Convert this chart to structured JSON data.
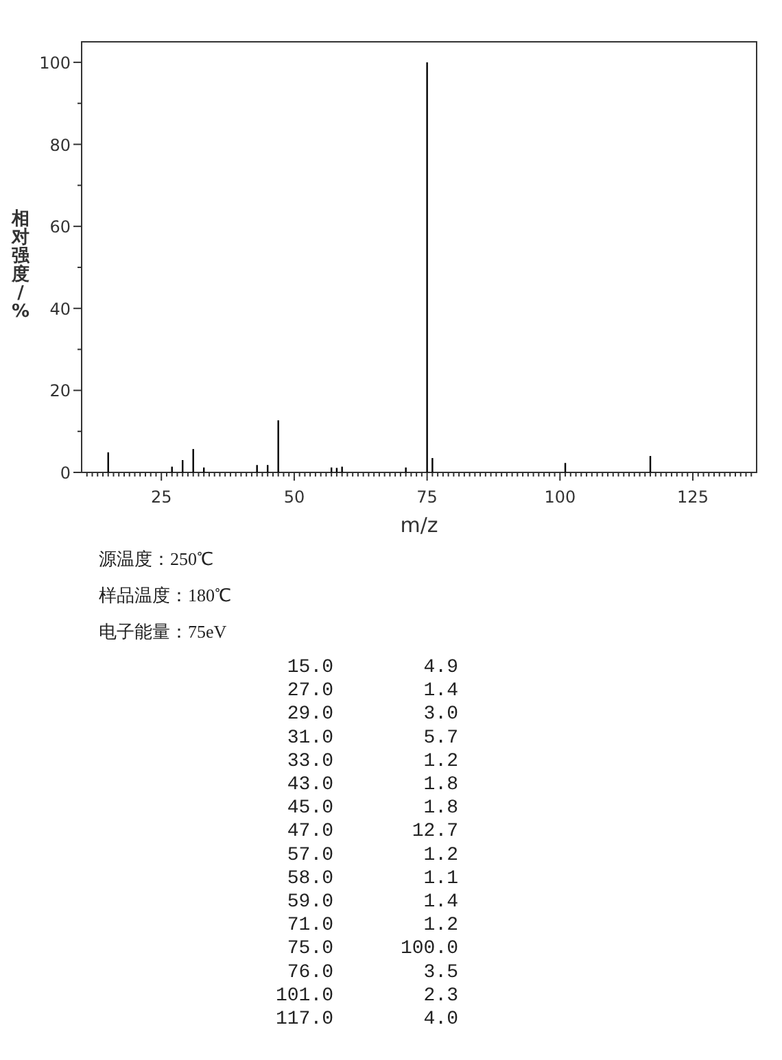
{
  "chart_data": [
    {
      "type": "bar",
      "xlabel": "m/z",
      "ylabel": "相对强度/%",
      "x": [
        15,
        27,
        29,
        31,
        33,
        43,
        45,
        47,
        57,
        58,
        59,
        71,
        75,
        76,
        101,
        117
      ],
      "values": [
        4.9,
        1.4,
        3.0,
        5.7,
        1.2,
        1.8,
        1.8,
        12.7,
        1.2,
        1.1,
        1.4,
        1.2,
        100.0,
        3.5,
        2.3,
        4.0
      ],
      "color": "#000000",
      "xlim": [
        10,
        137
      ],
      "ylim": [
        0,
        105
      ],
      "xticks": [
        {
          "value": 11,
          "label": null
        },
        {
          "value": 12,
          "label": null
        },
        {
          "value": 13,
          "label": null
        },
        {
          "value": 14,
          "label": null
        },
        {
          "value": 15,
          "label": null
        },
        {
          "value": 16,
          "label": null
        },
        {
          "value": 17,
          "label": null
        },
        {
          "value": 18,
          "label": null
        },
        {
          "value": 19,
          "label": null
        },
        {
          "value": 20,
          "label": null
        },
        {
          "value": 21,
          "label": null
        },
        {
          "value": 22,
          "label": null
        },
        {
          "value": 23,
          "label": null
        },
        {
          "value": 24,
          "label": null
        },
        25,
        {
          "value": 26,
          "label": null
        },
        {
          "value": 27,
          "label": null
        },
        {
          "value": 28,
          "label": null
        },
        {
          "value": 29,
          "label": null
        },
        {
          "value": 30,
          "label": null
        },
        {
          "value": 31,
          "label": null
        },
        {
          "value": 32,
          "label": null
        },
        {
          "value": 33,
          "label": null
        },
        {
          "value": 34,
          "label": null
        },
        {
          "value": 35,
          "label": null
        },
        {
          "value": 36,
          "label": null
        },
        {
          "value": 37,
          "label": null
        },
        {
          "value": 38,
          "label": null
        },
        {
          "value": 39,
          "label": null
        },
        {
          "value": 40,
          "label": null
        },
        {
          "value": 41,
          "label": null
        },
        {
          "value": 42,
          "label": null
        },
        {
          "value": 43,
          "label": null
        },
        {
          "value": 44,
          "label": null
        },
        {
          "value": 45,
          "label": null
        },
        {
          "value": 46,
          "label": null
        },
        {
          "value": 47,
          "label": null
        },
        {
          "value": 48,
          "label": null
        },
        {
          "value": 49,
          "label": null
        },
        50,
        {
          "value": 51,
          "label": null
        },
        {
          "value": 52,
          "label": null
        },
        {
          "value": 53,
          "label": null
        },
        {
          "value": 54,
          "label": null
        },
        {
          "value": 55,
          "label": null
        },
        {
          "value": 56,
          "label": null
        },
        {
          "value": 57,
          "label": null
        },
        {
          "value": 58,
          "label": null
        },
        {
          "value": 59,
          "label": null
        },
        {
          "value": 60,
          "label": null
        },
        {
          "value": 61,
          "label": null
        },
        {
          "value": 62,
          "label": null
        },
        {
          "value": 63,
          "label": null
        },
        {
          "value": 64,
          "label": null
        },
        {
          "value": 65,
          "label": null
        },
        {
          "value": 66,
          "label": null
        },
        {
          "value": 67,
          "label": null
        },
        {
          "value": 68,
          "label": null
        },
        {
          "value": 69,
          "label": null
        },
        {
          "value": 70,
          "label": null
        },
        {
          "value": 71,
          "label": null
        },
        {
          "value": 72,
          "label": null
        },
        {
          "value": 73,
          "label": null
        },
        {
          "value": 74,
          "label": null
        },
        75,
        {
          "value": 76,
          "label": null
        },
        {
          "value": 77,
          "label": null
        },
        {
          "value": 78,
          "label": null
        },
        {
          "value": 79,
          "label": null
        },
        {
          "value": 80,
          "label": null
        },
        {
          "value": 81,
          "label": null
        },
        {
          "value": 82,
          "label": null
        },
        {
          "value": 83,
          "label": null
        },
        {
          "value": 84,
          "label": null
        },
        {
          "value": 85,
          "label": null
        },
        {
          "value": 86,
          "label": null
        },
        {
          "value": 87,
          "label": null
        },
        {
          "value": 88,
          "label": null
        },
        {
          "value": 89,
          "label": null
        },
        {
          "value": 90,
          "label": null
        },
        {
          "value": 91,
          "label": null
        },
        {
          "value": 92,
          "label": null
        },
        {
          "value": 93,
          "label": null
        },
        {
          "value": 94,
          "label": null
        },
        {
          "value": 95,
          "label": null
        },
        {
          "value": 96,
          "label": null
        },
        {
          "value": 97,
          "label": null
        },
        {
          "value": 98,
          "label": null
        },
        {
          "value": 99,
          "label": null
        },
        100,
        {
          "value": 101,
          "label": null
        },
        {
          "value": 102,
          "label": null
        },
        {
          "value": 103,
          "label": null
        },
        {
          "value": 104,
          "label": null
        },
        {
          "value": 105,
          "label": null
        },
        {
          "value": 106,
          "label": null
        },
        {
          "value": 107,
          "label": null
        },
        {
          "value": 108,
          "label": null
        },
        {
          "value": 109,
          "label": null
        },
        {
          "value": 110,
          "label": null
        },
        {
          "value": 111,
          "label": null
        },
        {
          "value": 112,
          "label": null
        },
        {
          "value": 113,
          "label": null
        },
        {
          "value": 114,
          "label": null
        },
        {
          "value": 115,
          "label": null
        },
        {
          "value": 116,
          "label": null
        },
        {
          "value": 117,
          "label": null
        },
        {
          "value": 118,
          "label": null
        },
        {
          "value": 119,
          "label": null
        },
        {
          "value": 120,
          "label": null
        },
        {
          "value": 121,
          "label": null
        },
        {
          "value": 122,
          "label": null
        },
        {
          "value": 123,
          "label": null
        },
        {
          "value": 124,
          "label": null
        },
        125,
        {
          "value": 126,
          "label": null
        },
        {
          "value": 127,
          "label": null
        },
        {
          "value": 128,
          "label": null
        },
        {
          "value": 129,
          "label": null
        },
        {
          "value": 130,
          "label": null
        },
        {
          "value": 131,
          "label": null
        },
        {
          "value": 132,
          "label": null
        },
        {
          "value": 133,
          "label": null
        },
        {
          "value": 134,
          "label": null
        },
        {
          "value": 135,
          "label": null
        },
        {
          "value": 136,
          "label": null
        }
      ],
      "yticks": [
        0,
        {
          "value": 10,
          "label": null
        },
        20,
        {
          "value": 30,
          "label": null
        },
        40,
        {
          "value": 50,
          "label": null
        },
        60,
        {
          "value": 70,
          "label": null
        },
        80,
        {
          "value": 90,
          "label": null
        },
        100
      ],
      "annotations": [
        "源温度：250℃",
        "样品温度：180℃",
        "电子能量：75eV"
      ]
    },
    {
      "type": "other",
      "annotations": [
        "15.0",
        "4.9",
        "27.0",
        "1.4",
        "29.0",
        "3.0",
        "31.0",
        "5.7",
        "33.0",
        "1.2",
        "43.0",
        "1.8",
        "45.0",
        "1.8",
        "47.0",
        "12.7",
        "57.0",
        "1.2",
        "58.0",
        "1.1",
        "59.0",
        "1.4",
        "71.0",
        "1.2",
        "75.0",
        "100.0",
        "76.0",
        "3.5",
        "101.0",
        "2.3",
        "117.0",
        "4.0"
      ]
    }
  ]
}
